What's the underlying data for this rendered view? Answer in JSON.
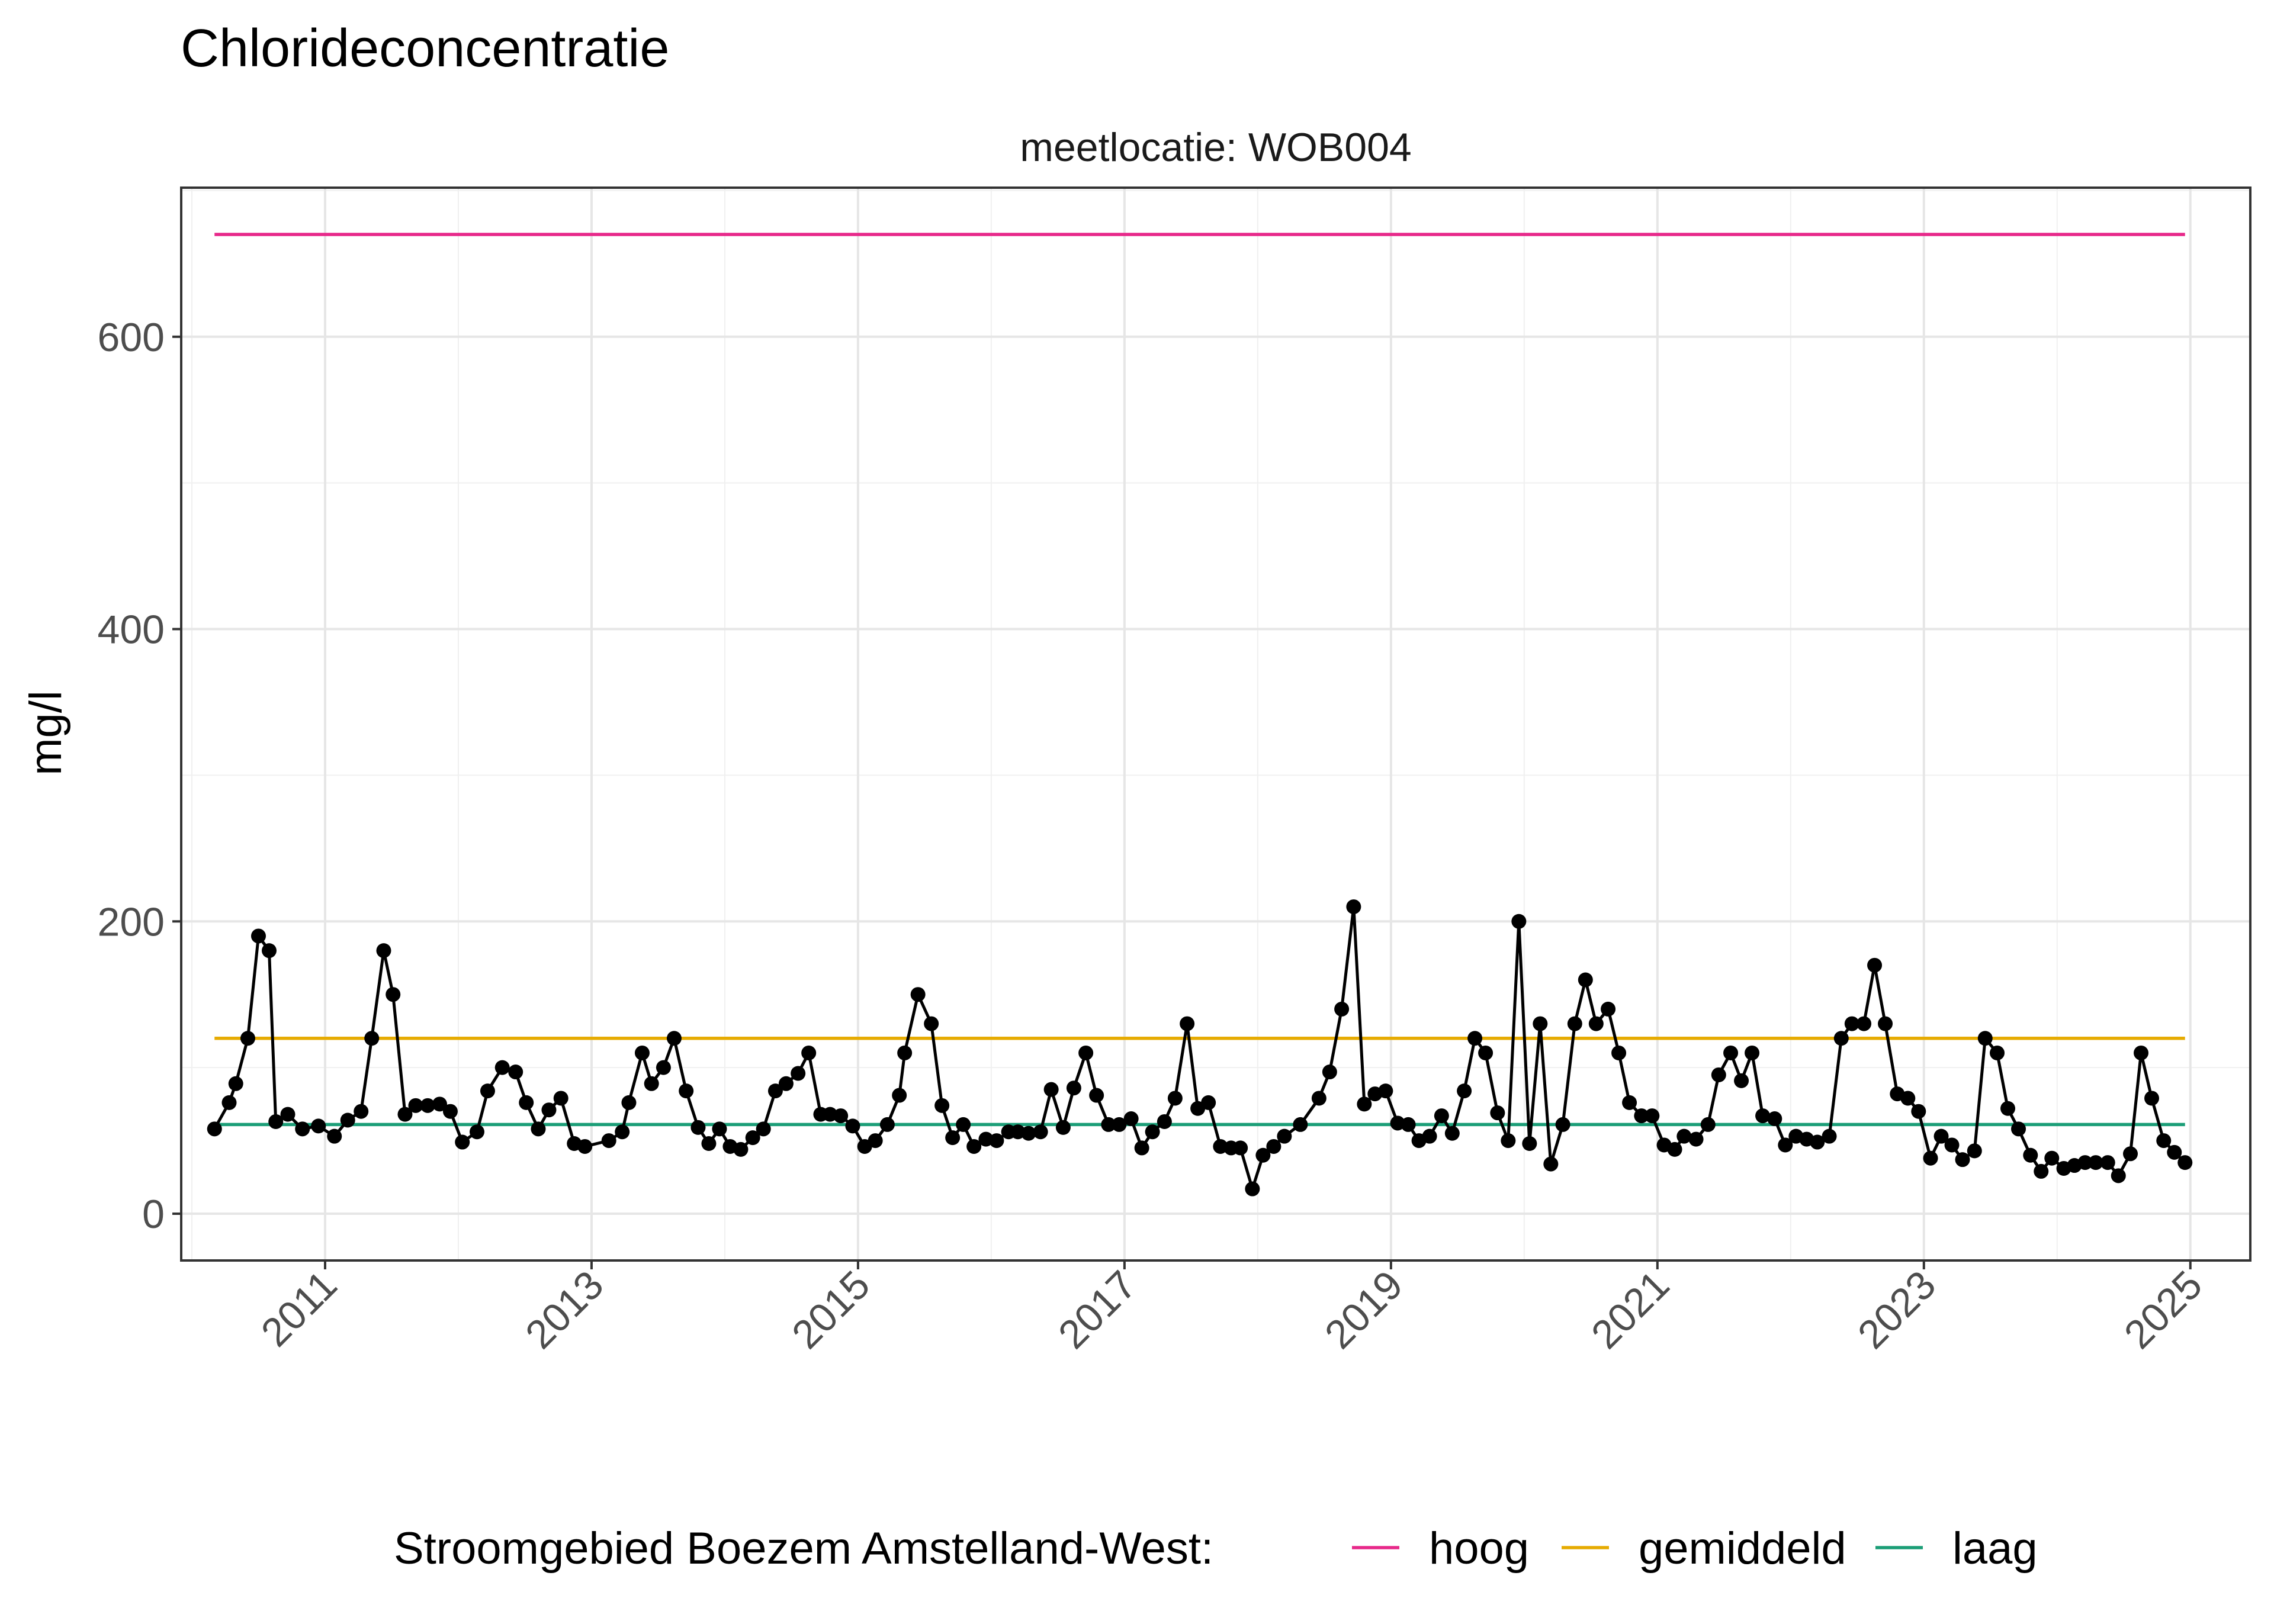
{
  "chart_data": {
    "type": "line",
    "title": "Chlorideconcentratie",
    "facet_label": "meetlocatie: WOB004",
    "ylabel": "mg/l",
    "xlabel": "",
    "xlim": [
      2009.92,
      2025.45
    ],
    "ylim": [
      -32,
      702
    ],
    "x_ticks": [
      2011,
      2013,
      2015,
      2017,
      2019,
      2021,
      2023,
      2025
    ],
    "x_tick_labels": [
      "2011",
      "2013",
      "2015",
      "2017",
      "2019",
      "2021",
      "2023",
      "2025"
    ],
    "y_ticks": [
      0,
      200,
      400,
      600
    ],
    "y_tick_labels": [
      "0",
      "200",
      "400",
      "600"
    ],
    "grid": true,
    "legend_position": "bottom",
    "legend_title": "Stroomgebied Boezem Amstelland-West:",
    "reference_lines": [
      {
        "name": "hoog",
        "value": 670,
        "x_range": [
          2010.17,
          2024.96
        ],
        "color": "#E7298A"
      },
      {
        "name": "gemiddeld",
        "value": 120,
        "x_range": [
          2010.17,
          2024.96
        ],
        "color": "#E6AB02"
      },
      {
        "name": "laag",
        "value": 61,
        "x_range": [
          2010.17,
          2024.96
        ],
        "color": "#1B9E77"
      }
    ],
    "series": [
      {
        "color": "#000000",
        "x": [
          2010.17,
          2010.28,
          2010.33,
          2010.42,
          2010.5,
          2010.58,
          2010.63,
          2010.72,
          2010.83,
          2010.95,
          2011.07,
          2011.17,
          2011.27,
          2011.35,
          2011.44,
          2011.51,
          2011.6,
          2011.68,
          2011.77,
          2011.86,
          2011.94,
          2012.03,
          2012.14,
          2012.22,
          2012.33,
          2012.43,
          2012.51,
          2012.6,
          2012.68,
          2012.77,
          2012.87,
          2012.95,
          2013.13,
          2013.23,
          2013.28,
          2013.38,
          2013.45,
          2013.54,
          2013.62,
          2013.71,
          2013.8,
          2013.88,
          2013.96,
          2014.04,
          2014.12,
          2014.21,
          2014.29,
          2014.38,
          2014.46,
          2014.55,
          2014.63,
          2014.72,
          2014.79,
          2014.87,
          2014.96,
          2015.05,
          2015.13,
          2015.22,
          2015.31,
          2015.35,
          2015.45,
          2015.55,
          2015.63,
          2015.71,
          2015.79,
          2015.87,
          2015.96,
          2016.04,
          2016.13,
          2016.2,
          2016.28,
          2016.37,
          2016.45,
          2016.54,
          2016.62,
          2016.71,
          2016.79,
          2016.88,
          2016.96,
          2017.05,
          2017.13,
          2017.21,
          2017.3,
          2017.38,
          2017.47,
          2017.55,
          2017.63,
          2017.72,
          2017.8,
          2017.87,
          2017.96,
          2018.04,
          2018.12,
          2018.2,
          2018.32,
          2018.46,
          2018.54,
          2018.63,
          2018.72,
          2018.8,
          2018.88,
          2018.96,
          2019.05,
          2019.13,
          2019.21,
          2019.29,
          2019.38,
          2019.46,
          2019.55,
          2019.63,
          2019.71,
          2019.8,
          2019.88,
          2019.96,
          2020.04,
          2020.12,
          2020.2,
          2020.29,
          2020.38,
          2020.46,
          2020.54,
          2020.63,
          2020.71,
          2020.79,
          2020.88,
          2020.96,
          2021.05,
          2021.13,
          2021.2,
          2021.29,
          2021.38,
          2021.46,
          2021.55,
          2021.63,
          2021.71,
          2021.79,
          2021.88,
          2021.96,
          2022.04,
          2022.12,
          2022.2,
          2022.29,
          2022.38,
          2022.46,
          2022.55,
          2022.63,
          2022.71,
          2022.8,
          2022.88,
          2022.96,
          2023.05,
          2023.13,
          2023.21,
          2023.29,
          2023.38,
          2023.46,
          2023.55,
          2023.63,
          2023.71,
          2023.8,
          2023.88,
          2023.96,
          2024.05,
          2024.13,
          2024.21,
          2024.29,
          2024.38,
          2024.46,
          2024.55,
          2024.63,
          2024.71,
          2024.8,
          2024.88,
          2024.96
        ],
        "y": [
          58,
          76,
          89,
          120,
          190,
          180,
          63,
          68,
          58,
          60,
          53,
          64,
          70,
          120,
          180,
          150,
          68,
          74,
          74,
          75,
          70,
          49,
          56,
          84,
          100,
          97,
          76,
          58,
          71,
          79,
          48,
          46,
          50,
          56,
          76,
          110,
          89,
          100,
          120,
          84,
          59,
          48,
          58,
          46,
          44,
          52,
          58,
          84,
          89,
          96,
          110,
          68,
          68,
          67,
          60,
          46,
          50,
          61,
          81,
          110,
          150,
          130,
          74,
          52,
          61,
          46,
          51,
          50,
          56,
          56,
          55,
          56,
          85,
          59,
          86,
          110,
          81,
          61,
          61,
          65,
          45,
          56,
          63,
          79,
          130,
          72,
          76,
          46,
          45,
          45,
          17,
          40,
          46,
          53,
          61,
          79,
          97,
          140,
          210,
          75,
          82,
          84,
          62,
          61,
          50,
          53,
          67,
          55,
          84,
          120,
          110,
          69,
          50,
          200,
          48,
          130,
          34,
          61,
          130,
          160,
          130,
          140,
          110,
          76,
          67,
          67,
          47,
          44,
          53,
          51,
          61,
          95,
          110,
          91,
          110,
          67,
          65,
          47,
          53,
          51,
          49,
          53,
          120,
          130,
          130,
          170,
          130,
          82,
          79,
          70,
          38,
          53,
          47,
          37,
          43,
          120,
          110,
          72,
          58,
          40,
          29,
          38,
          31,
          33,
          35,
          35,
          35,
          26,
          41,
          110,
          79,
          50,
          42,
          35
        ]
      }
    ]
  }
}
